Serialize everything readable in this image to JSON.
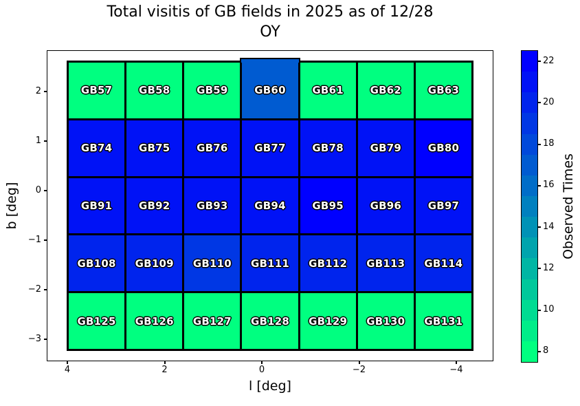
{
  "figure": {
    "title_line1": "Total visitis of GB fields in 2025 as of 12/28",
    "title_line2": "OY"
  },
  "axes": {
    "xlabel": "l [deg]",
    "ylabel": "b [deg]",
    "x_ticks": [
      "4",
      "2",
      "0",
      "−2",
      "−4"
    ],
    "y_ticks": [
      "2",
      "1",
      "0",
      "−1",
      "−2",
      "−3"
    ]
  },
  "colorbar": {
    "label": "Observed Times",
    "ticks": [
      "22",
      "20",
      "18",
      "16",
      "14",
      "12",
      "10",
      "8"
    ],
    "low_color": "#00FF80",
    "high_color": "#0000FF",
    "levels": 15
  },
  "chart_data": {
    "type": "heatmap",
    "title": "Total visitis of GB fields in 2025 as of 12/28 OY",
    "xlabel": "l [deg]",
    "ylabel": "b [deg]",
    "colorbar_label": "Observed Times",
    "colormap": "winter_r",
    "value_range": [
      8,
      22
    ],
    "x_axis_inverted": true,
    "x_range": [
      4.4,
      -4.8
    ],
    "y_range": [
      -3.3,
      2.6
    ],
    "rows": [
      {
        "fields": [
          "GB57",
          "GB58",
          "GB59",
          "GB60",
          "GB61",
          "GB62",
          "GB63"
        ],
        "values": [
          8,
          8,
          8,
          17,
          8,
          8,
          8
        ]
      },
      {
        "fields": [
          "GB74",
          "GB75",
          "GB76",
          "GB77",
          "GB78",
          "GB79",
          "GB80"
        ],
        "values": [
          21,
          21,
          21,
          21,
          21,
          21,
          22
        ]
      },
      {
        "fields": [
          "GB91",
          "GB92",
          "GB93",
          "GB94",
          "GB95",
          "GB96",
          "GB97"
        ],
        "values": [
          21,
          21,
          21,
          21,
          22,
          21,
          21
        ]
      },
      {
        "fields": [
          "GB108",
          "GB109",
          "GB110",
          "GB111",
          "GB112",
          "GB113",
          "GB114"
        ],
        "values": [
          20,
          20,
          19,
          20,
          20,
          20,
          20
        ]
      },
      {
        "fields": [
          "GB125",
          "GB126",
          "GB127",
          "GB128",
          "GB129",
          "GB130",
          "GB131"
        ],
        "values": [
          8,
          8,
          8,
          8,
          8,
          8,
          8
        ]
      }
    ]
  }
}
